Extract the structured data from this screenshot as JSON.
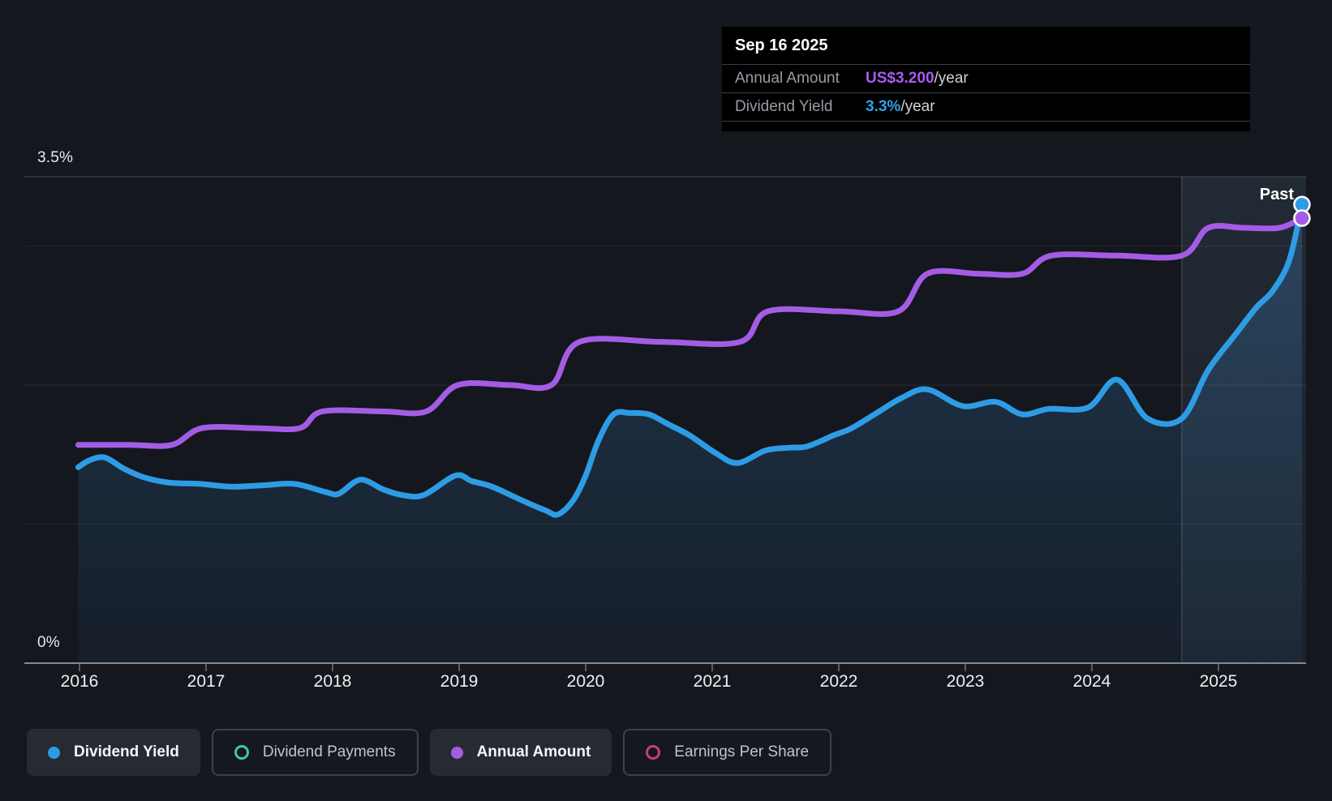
{
  "tooltip": {
    "date": "Sep 16 2025",
    "rows": [
      {
        "label": "Annual Amount",
        "value": "US$3.200",
        "suffix": "/year",
        "color": "#aa5cf0"
      },
      {
        "label": "Dividend Yield",
        "value": "3.3%",
        "suffix": "/year",
        "color": "#2fa0e8"
      }
    ]
  },
  "past_label": "Past",
  "axis": {
    "y_top_label": "3.5%",
    "y_bottom_label": "0%",
    "years": [
      "2016",
      "2017",
      "2018",
      "2019",
      "2020",
      "2021",
      "2022",
      "2023",
      "2024",
      "2025"
    ]
  },
  "legend": [
    {
      "label": "Dividend Yield",
      "color": "#2e9ce4",
      "style": "filled",
      "active": true
    },
    {
      "label": "Dividend Payments",
      "color": "#3ec6b5",
      "style": "outline",
      "active": false
    },
    {
      "label": "Annual Amount",
      "color": "#a55ce4",
      "style": "filled",
      "active": true
    },
    {
      "label": "Earnings Per Share",
      "color": "#c2407e",
      "style": "outline",
      "active": false
    }
  ],
  "colors": {
    "background": "#14171e",
    "dividend_yield": "#2e9ce4",
    "annual_amount": "#a55ce4",
    "axis_line": "#858a91",
    "gridline": "rgba(255,255,255,0.07)",
    "highlight_band": "rgba(121,161,200,0.10)"
  },
  "chart_data": {
    "type": "line",
    "title": "Dividend history and yield",
    "x_range": [
      2015.99,
      2025.73
    ],
    "y_percent_range": [
      0,
      3.5
    ],
    "y_tick_percent": [
      0,
      1,
      2,
      3,
      3.5
    ],
    "grid": true,
    "legend_position": "bottom",
    "highlight_from_x": 2024.71,
    "highlight_label": "Past",
    "series": [
      {
        "name": "Dividend Yield",
        "unit": "%",
        "color": "#2e9ce4",
        "area": true,
        "points": [
          [
            2015.99,
            1.41
          ],
          [
            2016.08,
            1.46
          ],
          [
            2016.2,
            1.48
          ],
          [
            2016.35,
            1.4
          ],
          [
            2016.5,
            1.34
          ],
          [
            2016.7,
            1.3
          ],
          [
            2016.95,
            1.29
          ],
          [
            2017.2,
            1.27
          ],
          [
            2017.45,
            1.28
          ],
          [
            2017.7,
            1.29
          ],
          [
            2017.95,
            1.23
          ],
          [
            2018.05,
            1.22
          ],
          [
            2018.22,
            1.32
          ],
          [
            2018.4,
            1.25
          ],
          [
            2018.55,
            1.21
          ],
          [
            2018.72,
            1.21
          ],
          [
            2018.97,
            1.35
          ],
          [
            2019.1,
            1.31
          ],
          [
            2019.26,
            1.27
          ],
          [
            2019.5,
            1.17
          ],
          [
            2019.68,
            1.1
          ],
          [
            2019.78,
            1.07
          ],
          [
            2019.9,
            1.17
          ],
          [
            2020.0,
            1.35
          ],
          [
            2020.1,
            1.6
          ],
          [
            2020.22,
            1.79
          ],
          [
            2020.35,
            1.8
          ],
          [
            2020.5,
            1.79
          ],
          [
            2020.65,
            1.72
          ],
          [
            2020.82,
            1.64
          ],
          [
            2021.03,
            1.51
          ],
          [
            2021.2,
            1.44
          ],
          [
            2021.42,
            1.53
          ],
          [
            2021.6,
            1.55
          ],
          [
            2021.75,
            1.56
          ],
          [
            2021.96,
            1.64
          ],
          [
            2022.1,
            1.69
          ],
          [
            2022.3,
            1.8
          ],
          [
            2022.5,
            1.91
          ],
          [
            2022.7,
            1.97
          ],
          [
            2022.98,
            1.85
          ],
          [
            2023.24,
            1.88
          ],
          [
            2023.45,
            1.79
          ],
          [
            2023.66,
            1.83
          ],
          [
            2023.97,
            1.84
          ],
          [
            2024.2,
            2.04
          ],
          [
            2024.44,
            1.76
          ],
          [
            2024.71,
            1.76
          ],
          [
            2024.92,
            2.11
          ],
          [
            2025.13,
            2.36
          ],
          [
            2025.3,
            2.56
          ],
          [
            2025.43,
            2.68
          ],
          [
            2025.56,
            2.9
          ],
          [
            2025.66,
            3.3
          ]
        ]
      },
      {
        "name": "Annual Amount",
        "unit": "US$/year",
        "color": "#a55ce4",
        "area": false,
        "points": [
          [
            2015.99,
            1.57
          ],
          [
            2016.4,
            1.57
          ],
          [
            2016.73,
            1.57
          ],
          [
            2016.97,
            1.69
          ],
          [
            2017.4,
            1.69
          ],
          [
            2017.74,
            1.69
          ],
          [
            2017.92,
            1.81
          ],
          [
            2018.4,
            1.81
          ],
          [
            2018.74,
            1.81
          ],
          [
            2018.99,
            2.0
          ],
          [
            2019.4,
            2.0
          ],
          [
            2019.73,
            2.0
          ],
          [
            2019.95,
            2.31
          ],
          [
            2020.6,
            2.31
          ],
          [
            2021.22,
            2.31
          ],
          [
            2021.44,
            2.53
          ],
          [
            2022.0,
            2.53
          ],
          [
            2022.47,
            2.53
          ],
          [
            2022.7,
            2.8
          ],
          [
            2023.1,
            2.8
          ],
          [
            2023.45,
            2.8
          ],
          [
            2023.68,
            2.93
          ],
          [
            2024.2,
            2.93
          ],
          [
            2024.71,
            2.93
          ],
          [
            2024.92,
            3.13
          ],
          [
            2025.2,
            3.13
          ],
          [
            2025.48,
            3.13
          ],
          [
            2025.66,
            3.2
          ]
        ]
      }
    ],
    "latest": {
      "date": "Sep 16 2025",
      "annual_amount_usd": 3.2,
      "dividend_yield_percent": 3.3
    }
  }
}
